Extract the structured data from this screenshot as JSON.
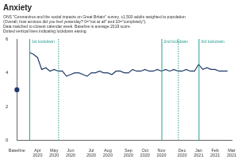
{
  "chart_data": {
    "type": "line",
    "title": "Anxiety",
    "subtitle": [
      "ONS \"Coronavirus and the social impacts on Great Britain\" survey. c1,500 adults weighted to population",
      "(Overall, how anxious did you feel yesterday? 0=\"not at all\" and 10=\"completely\").",
      "Data matched to closest calendar week. Baseline is average 2019 score.",
      "Dotted vertical lines indicating lockdown easing."
    ],
    "categories": [
      "Baseline",
      null,
      null,
      null,
      null,
      "Apr 2020",
      null,
      null,
      null,
      "May 2020",
      null,
      null,
      null,
      "Jun 2020",
      null,
      null,
      null,
      null,
      "Jul 2020",
      null,
      null,
      null,
      "Aug 2020",
      null,
      null,
      null,
      null,
      "Sep 2020",
      null,
      null,
      null,
      "Oct 2020",
      null,
      null,
      null,
      "Nov 2020",
      null,
      null,
      null,
      null,
      "Dec 2020",
      null,
      null,
      null,
      "Jan 2021",
      null,
      null,
      null,
      "Feb 2021",
      null,
      null,
      null,
      "Mar 2021"
    ],
    "values": [
      3.0,
      null,
      null,
      5.2,
      5.1,
      4.9,
      4.2,
      4.3,
      4.1,
      4.2,
      4.1,
      4.1,
      3.8,
      3.9,
      4.0,
      4.0,
      3.9,
      3.8,
      4.0,
      4.0,
      4.1,
      4.0,
      4.0,
      3.9,
      4.1,
      4.1,
      4.0,
      4.0,
      4.2,
      4.1,
      4.1,
      4.2,
      4.1,
      4.1,
      4.2,
      4.1,
      4.2,
      4.1,
      4.2,
      4.1,
      4.1,
      4.2,
      4.1,
      4.1,
      4.5,
      4.2,
      4.3,
      4.2,
      4.2,
      4.1,
      4.1,
      4.1,
      null
    ],
    "color": "#1f3a68",
    "ylim": [
      0,
      6
    ],
    "yticks": [
      0,
      2,
      4,
      6
    ],
    "grid": false,
    "annotations": [
      {
        "x": 3,
        "text": "1st lockdown",
        "line_style": "solid",
        "color": "#2a9d8f"
      },
      {
        "x": 10,
        "line_style": "dotted",
        "color": "#2a9d8f"
      },
      {
        "x": 35,
        "text": "2nd lockdown",
        "line_style": "solid",
        "color": "#2a9d8f"
      },
      {
        "x": 39,
        "line_style": "dotted",
        "color": "#2a9d8f"
      },
      {
        "x": 44,
        "text": "3rd lockdown",
        "line_style": "solid",
        "color": "#2a9d8f"
      }
    ]
  }
}
